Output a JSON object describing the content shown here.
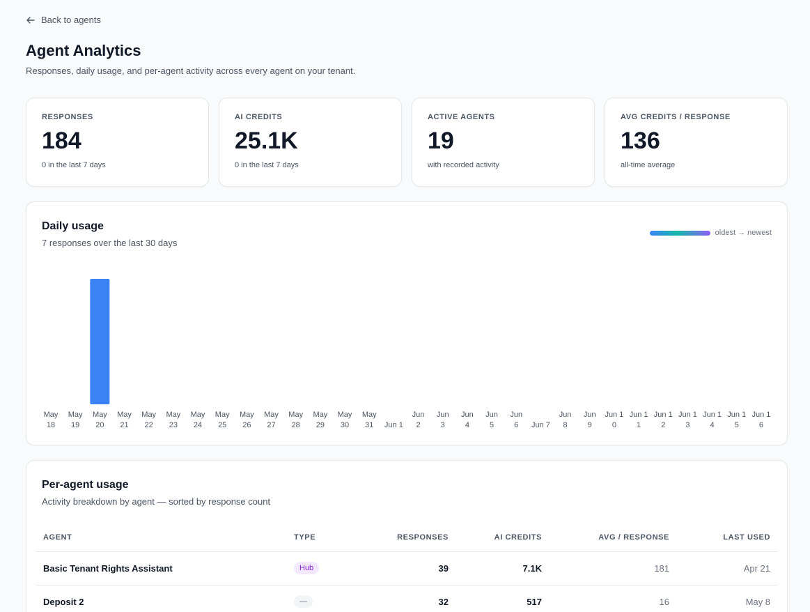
{
  "nav": {
    "back_label": "Back to agents"
  },
  "header": {
    "title": "Agent Analytics",
    "subtitle": "Responses, daily usage, and per-agent activity across every agent on your tenant."
  },
  "stats": [
    {
      "label": "RESPONSES",
      "value": "184",
      "sub": "0 in the last 7 days"
    },
    {
      "label": "AI CREDITS",
      "value": "25.1K",
      "sub": "0 in the last 7 days"
    },
    {
      "label": "ACTIVE AGENTS",
      "value": "19",
      "sub": "with recorded activity"
    },
    {
      "label": "AVG CREDITS / RESPONSE",
      "value": "136",
      "sub": "all-time average"
    }
  ],
  "daily": {
    "title": "Daily usage",
    "subtitle": "7 responses over the last 30 days",
    "legend": "oldest → newest",
    "bar_color": "#3b82f6"
  },
  "chart_data": {
    "type": "bar",
    "categories": [
      [
        "May",
        "18"
      ],
      [
        "May",
        "19"
      ],
      [
        "May",
        "20"
      ],
      [
        "May",
        "21"
      ],
      [
        "May",
        "22"
      ],
      [
        "May",
        "23"
      ],
      [
        "May",
        "24"
      ],
      [
        "May",
        "25"
      ],
      [
        "May",
        "26"
      ],
      [
        "May",
        "27"
      ],
      [
        "May",
        "28"
      ],
      [
        "May",
        "29"
      ],
      [
        "May",
        "30"
      ],
      [
        "May",
        "31"
      ],
      [
        "Jun 1"
      ],
      [
        "Jun",
        "2"
      ],
      [
        "Jun",
        "3"
      ],
      [
        "Jun",
        "4"
      ],
      [
        "Jun",
        "5"
      ],
      [
        "Jun",
        "6"
      ],
      [
        "Jun 7"
      ],
      [
        "Jun",
        "8"
      ],
      [
        "Jun",
        "9"
      ],
      [
        "Jun 1",
        "0"
      ],
      [
        "Jun 1",
        "1"
      ],
      [
        "Jun 1",
        "2"
      ],
      [
        "Jun 1",
        "3"
      ],
      [
        "Jun 1",
        "4"
      ],
      [
        "Jun 1",
        "5"
      ],
      [
        "Jun 1",
        "6"
      ]
    ],
    "values": [
      0,
      0,
      7,
      0,
      0,
      0,
      0,
      0,
      0,
      0,
      0,
      0,
      0,
      0,
      0,
      0,
      0,
      0,
      0,
      0,
      0,
      0,
      0,
      0,
      0,
      0,
      0,
      0,
      0,
      0
    ],
    "ylim": [
      0,
      7
    ],
    "grid": false
  },
  "agents": {
    "title": "Per-agent usage",
    "subtitle": "Activity breakdown by agent — sorted by response count",
    "columns": [
      "AGENT",
      "TYPE",
      "RESPONSES",
      "AI CREDITS",
      "AVG / RESPONSE",
      "LAST USED"
    ],
    "rows": [
      {
        "agent": "Basic Tenant Rights Assistant",
        "type": "Hub",
        "responses": "39",
        "credits": "7.1K",
        "avg": "181",
        "last_used": "Apr 21"
      },
      {
        "agent": "Deposit 2",
        "type": "—",
        "responses": "32",
        "credits": "517",
        "avg": "16",
        "last_used": "May 8"
      }
    ]
  }
}
